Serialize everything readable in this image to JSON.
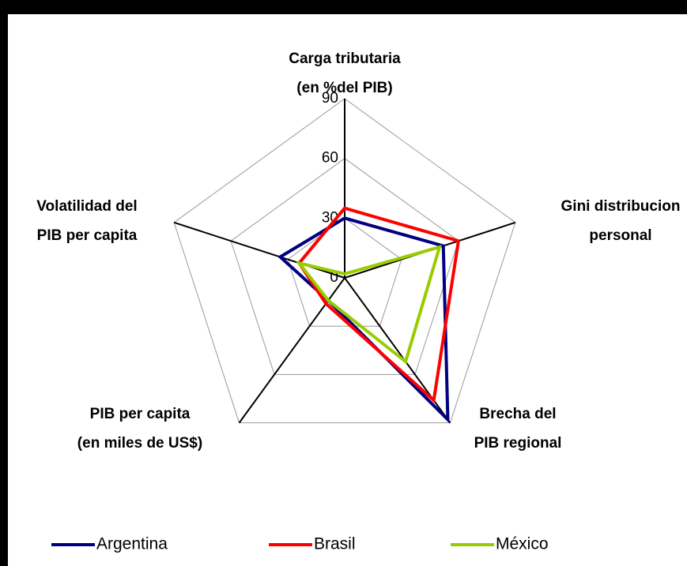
{
  "chart_data": {
    "type": "radar",
    "categories": [
      [
        "Carga tributaria",
        "(en %del PIB)"
      ],
      [
        "Gini distribucion",
        "personal"
      ],
      [
        "Brecha del",
        "PIB regional"
      ],
      [
        "PIB per capita",
        "(en miles de US$)"
      ],
      [
        "Volatilidad del",
        "PIB per capita"
      ]
    ],
    "series": [
      {
        "name": "Argentina",
        "color": "#000080",
        "values": [
          30,
          52,
          88,
          14,
          34
        ]
      },
      {
        "name": "Brasil",
        "color": "#ff0000",
        "values": [
          35,
          60,
          76,
          16,
          24
        ]
      },
      {
        "name": "México",
        "color": "#99cc00",
        "values": [
          2,
          50,
          52,
          14,
          24
        ]
      }
    ],
    "ylim": [
      0,
      90
    ],
    "yticks": [
      0,
      30,
      60,
      90
    ],
    "grid": true,
    "legend": "bottom"
  }
}
